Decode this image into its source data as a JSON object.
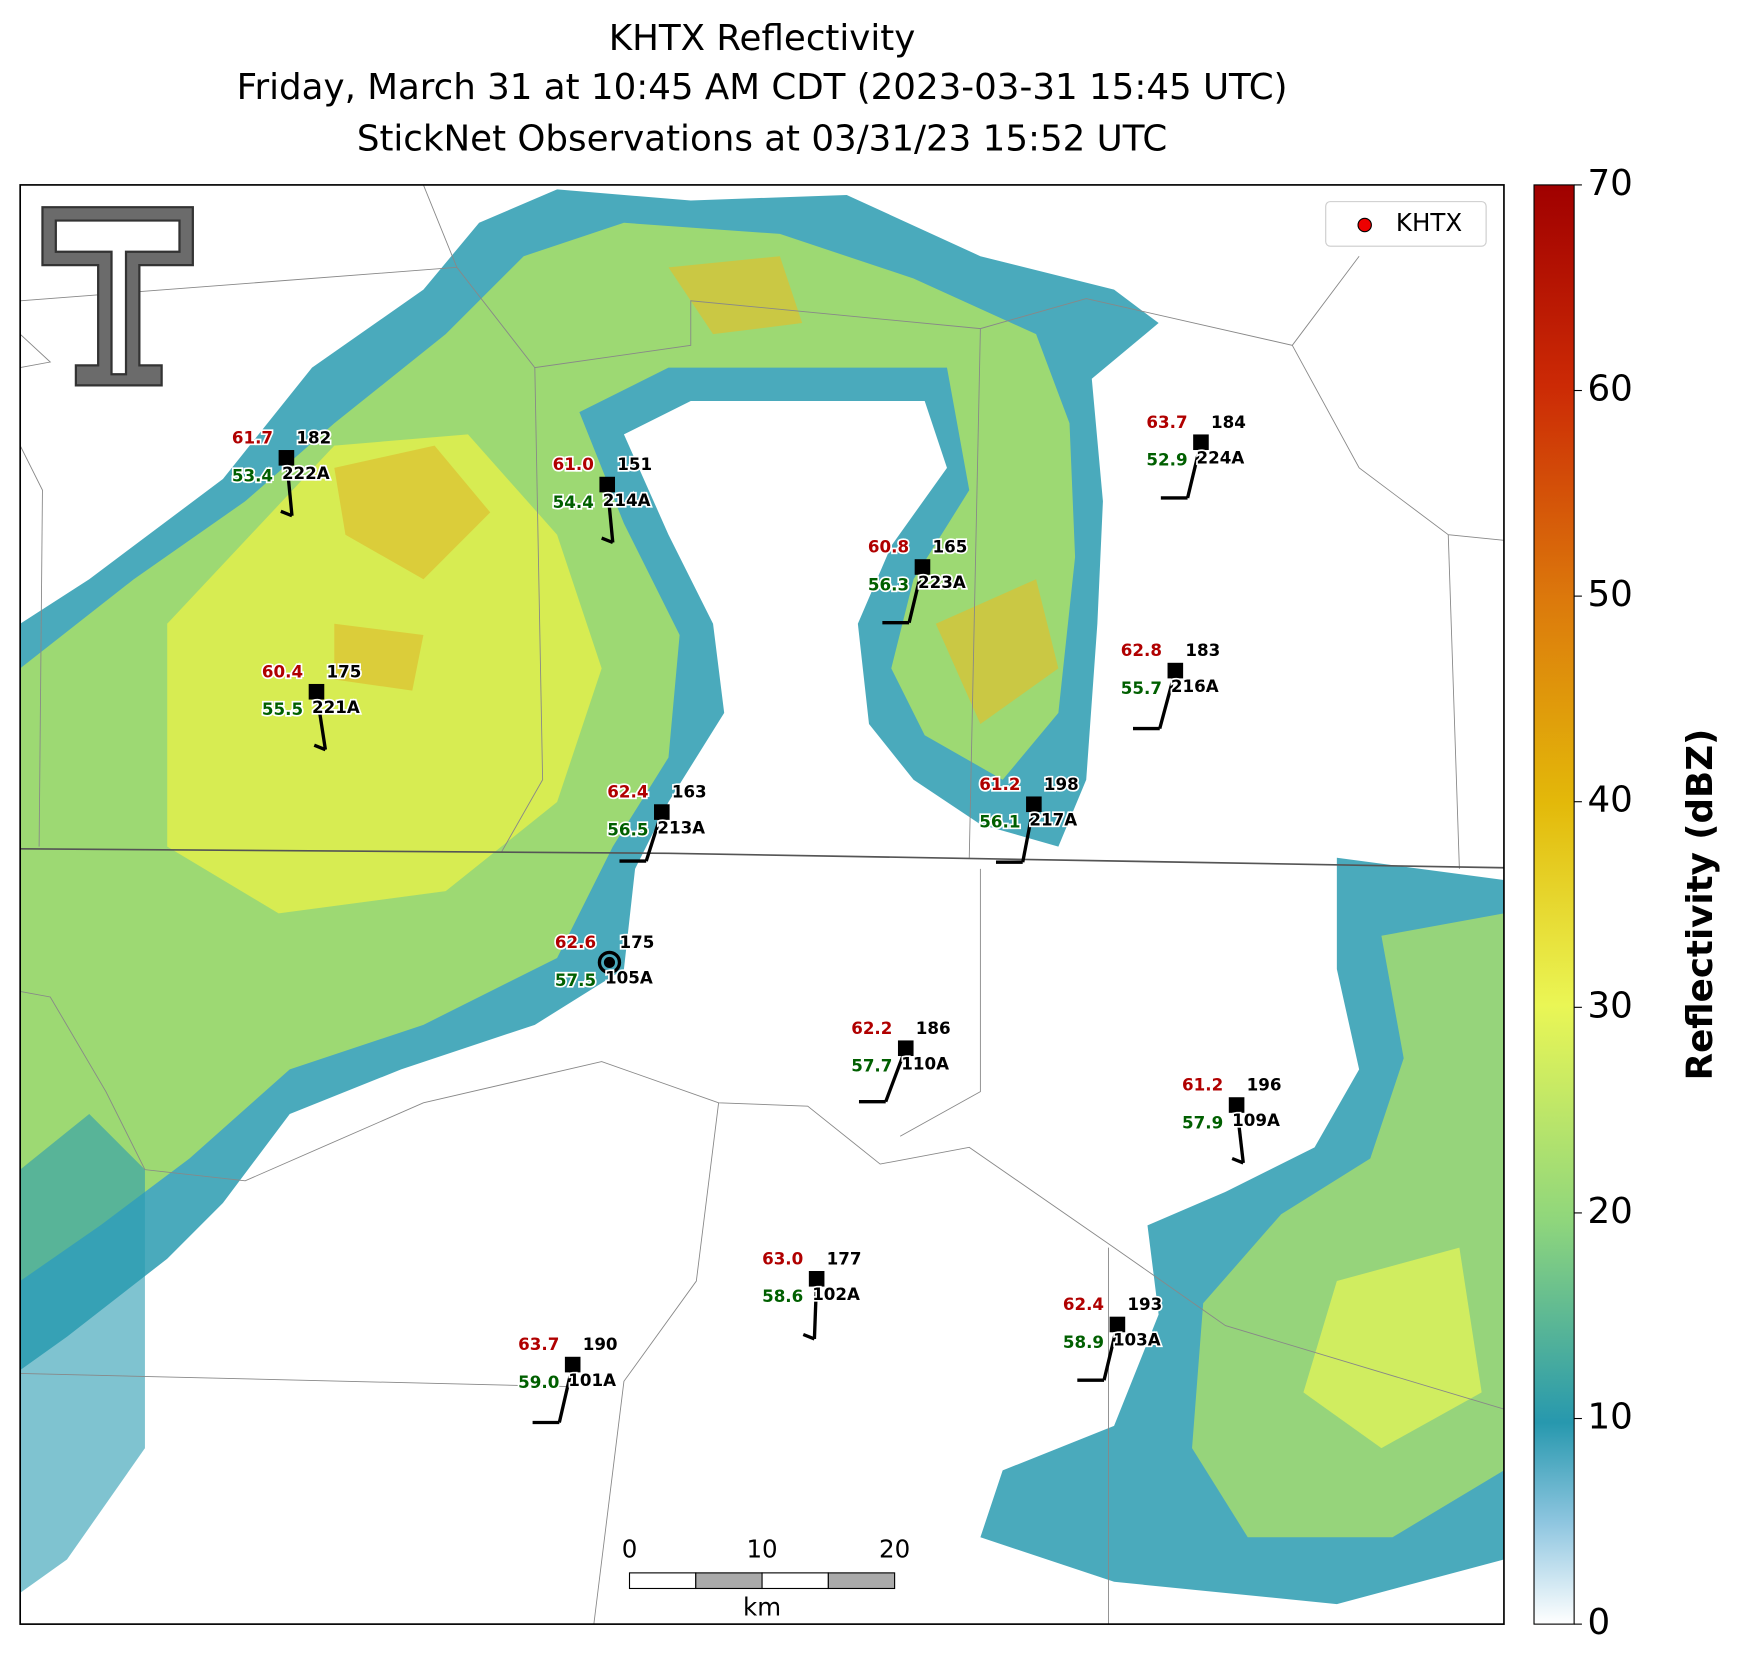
{
  "title": [
    "KHTX Reflectivity",
    "Friday, March 31 at 10:45 AM CDT (2023-03-31 15:45 UTC)",
    "StickNet Observations at 03/31/23 15:52 UTC"
  ],
  "legend": "KHTX",
  "colorbar": {
    "label": "Reflectivity (dBZ)",
    "lim": [
      0,
      70
    ],
    "ticks": [
      0,
      10,
      20,
      30,
      40,
      50,
      60,
      70
    ]
  },
  "scale_bar": {
    "ticks": [
      0,
      10,
      20
    ],
    "unit": "km"
  },
  "stations": [
    {
      "temp": "61.7",
      "dew": "53.4",
      "value": "182",
      "id": "222A"
    },
    {
      "temp": "61.0",
      "dew": "54.4",
      "value": "151",
      "id": "214A"
    },
    {
      "temp": "60.8",
      "dew": "56.3",
      "value": "165",
      "id": "223A"
    },
    {
      "temp": "63.7",
      "dew": "52.9",
      "value": "184",
      "id": "224A"
    },
    {
      "temp": "60.4",
      "dew": "55.5",
      "value": "175",
      "id": "221A"
    },
    {
      "temp": "62.8",
      "dew": "55.7",
      "value": "183",
      "id": "216A"
    },
    {
      "temp": "62.4",
      "dew": "56.5",
      "value": "163",
      "id": "213A"
    },
    {
      "temp": "61.2",
      "dew": "56.1",
      "value": "198",
      "id": "217A"
    },
    {
      "temp": "62.6",
      "dew": "57.5",
      "value": "175",
      "id": "105A"
    },
    {
      "temp": "62.2",
      "dew": "57.7",
      "value": "186",
      "id": "110A"
    },
    {
      "temp": "61.2",
      "dew": "57.9",
      "value": "196",
      "id": "109A"
    },
    {
      "temp": "63.0",
      "dew": "58.6",
      "value": "177",
      "id": "102A"
    },
    {
      "temp": "62.4",
      "dew": "58.9",
      "value": "193",
      "id": "103A"
    },
    {
      "temp": "63.7",
      "dew": "59.0",
      "value": "190",
      "id": "101A"
    }
  ]
}
